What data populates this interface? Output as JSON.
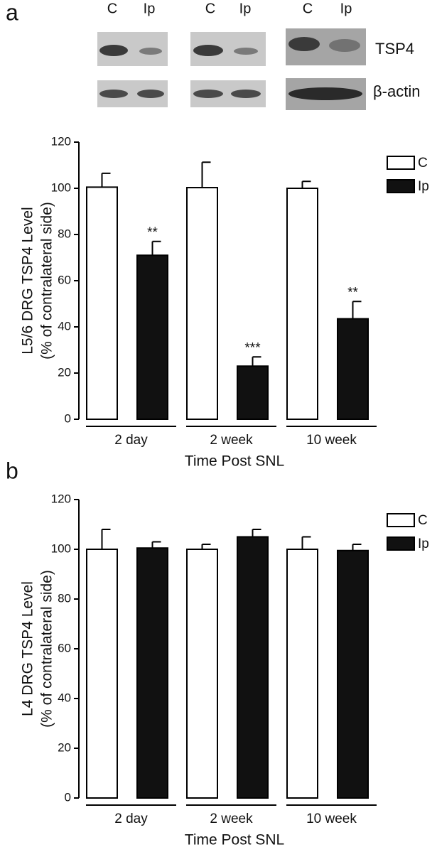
{
  "blot": {
    "lane_labels": [
      "C",
      "Ip",
      "C",
      "Ip",
      "C",
      "Ip"
    ],
    "bands": [
      "TSP4",
      "β-actin"
    ]
  },
  "chart_data": [
    {
      "type": "bar",
      "panel_label": "a",
      "y_label": [
        "L5/6 DRG TSP4 Level",
        "(% of contralateral side)"
      ],
      "x_label": "Time Post SNL",
      "categories": [
        "2 day",
        "2 week",
        "10 week"
      ],
      "series": [
        {
          "name": "C",
          "color": "#ffffff",
          "values": [
            100.5,
            100.3,
            100
          ],
          "errors": [
            6,
            11,
            3
          ]
        },
        {
          "name": "Ip",
          "color": "#111111",
          "values": [
            71,
            23,
            43.5
          ],
          "errors": [
            6,
            4,
            7.5
          ],
          "significance": [
            "**",
            "***",
            "**"
          ]
        }
      ],
      "ylim": [
        0,
        120
      ],
      "yticks": [
        0,
        20,
        40,
        60,
        80,
        100,
        120
      ],
      "legend": "upper right"
    },
    {
      "type": "bar",
      "panel_label": "b",
      "y_label": [
        "L4 DRG TSP4 Level",
        "(% of contralateral side)"
      ],
      "x_label": "Time Post SNL",
      "categories": [
        "2 day",
        "2 week",
        "10 week"
      ],
      "series": [
        {
          "name": "C",
          "color": "#ffffff",
          "values": [
            100,
            100,
            100
          ],
          "errors": [
            8,
            2,
            5
          ]
        },
        {
          "name": "Ip",
          "color": "#111111",
          "values": [
            100.5,
            105,
            99.5
          ],
          "errors": [
            2.5,
            3,
            2.5
          ]
        }
      ],
      "ylim": [
        0,
        120
      ],
      "yticks": [
        0,
        20,
        40,
        60,
        80,
        100,
        120
      ],
      "legend": "upper right"
    }
  ]
}
